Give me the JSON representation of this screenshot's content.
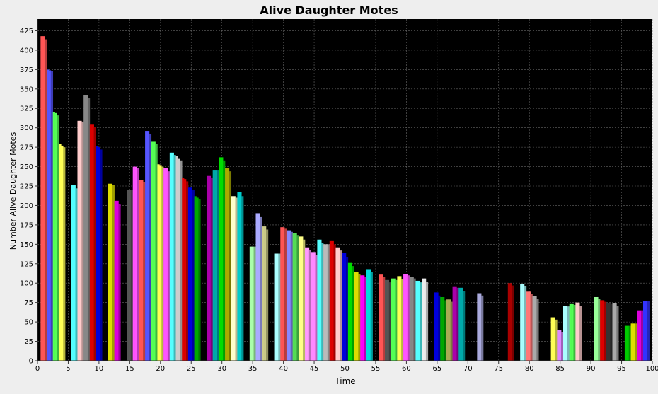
{
  "chart_data": {
    "type": "bar",
    "title": "Alive Daughter Motes",
    "xlabel": "Time",
    "ylabel": "Number Alive Daughter Motes",
    "xlim": [
      0,
      100
    ],
    "ylim": [
      0,
      440
    ],
    "x_ticks": [
      0,
      5,
      10,
      15,
      20,
      25,
      30,
      35,
      40,
      45,
      50,
      55,
      60,
      65,
      70,
      75,
      80,
      85,
      90,
      95,
      100
    ],
    "y_ticks": [
      0,
      25,
      50,
      75,
      100,
      125,
      150,
      175,
      200,
      225,
      250,
      275,
      300,
      325,
      350,
      375,
      400,
      425
    ],
    "grid": true,
    "legend": "none",
    "background": "#000000",
    "series": [
      {
        "x": 1,
        "values": [
          418,
          418,
          414
        ],
        "color": "#ff5555"
      },
      {
        "x": 2,
        "values": [
          375,
          374,
          373
        ],
        "color": "#5555ff"
      },
      {
        "x": 3,
        "values": [
          320,
          319,
          316
        ],
        "color": "#55ff55"
      },
      {
        "x": 4,
        "values": [
          279,
          277,
          275
        ],
        "color": "#ffff55"
      },
      {
        "x": 6,
        "values": [
          226,
          226,
          222
        ],
        "color": "#55ffff"
      },
      {
        "x": 7,
        "values": [
          309,
          309,
          308
        ],
        "color": "#ffcccc"
      },
      {
        "x": 8,
        "values": [
          342,
          342,
          338
        ],
        "color": "#888888"
      },
      {
        "x": 9,
        "values": [
          304,
          304,
          301
        ],
        "color": "#dd0000"
      },
      {
        "x": 10,
        "values": [
          276,
          275,
          272
        ],
        "color": "#0000dd"
      },
      {
        "x": 12,
        "values": [
          228,
          228,
          226
        ],
        "color": "#dddd00"
      },
      {
        "x": 13,
        "values": [
          206,
          206,
          202
        ],
        "color": "#dd00dd"
      },
      {
        "x": 15,
        "values": [
          220,
          220,
          220
        ],
        "color": "#555555"
      },
      {
        "x": 16,
        "values": [
          250,
          250,
          248
        ],
        "color": "#ff55ff"
      },
      {
        "x": 17,
        "values": [
          233,
          233,
          230
        ],
        "color": "#ff5555"
      },
      {
        "x": 18,
        "values": [
          296,
          296,
          292
        ],
        "color": "#5555ff"
      },
      {
        "x": 19,
        "values": [
          282,
          282,
          279
        ],
        "color": "#55ff55"
      },
      {
        "x": 20,
        "values": [
          253,
          252,
          250
        ],
        "color": "#ffff55"
      },
      {
        "x": 21,
        "values": [
          248,
          248,
          244
        ],
        "color": "#ff55ff"
      },
      {
        "x": 22,
        "values": [
          268,
          268,
          265
        ],
        "color": "#55ffff"
      },
      {
        "x": 23,
        "values": [
          264,
          260,
          258
        ],
        "color": "#cccccc"
      },
      {
        "x": 24,
        "values": [
          235,
          234,
          231
        ],
        "color": "#dd0000"
      },
      {
        "x": 25,
        "values": [
          223,
          223,
          220
        ],
        "color": "#0000dd"
      },
      {
        "x": 26,
        "values": [
          212,
          210,
          208
        ],
        "color": "#00aa00"
      },
      {
        "x": 28,
        "values": [
          238,
          238,
          236
        ],
        "color": "#aa00aa"
      },
      {
        "x": 29,
        "values": [
          245,
          245,
          245
        ],
        "color": "#00aaaa"
      },
      {
        "x": 30,
        "values": [
          262,
          262,
          258
        ],
        "color": "#00dd00"
      },
      {
        "x": 31,
        "values": [
          248,
          248,
          244
        ],
        "color": "#aaaa00"
      },
      {
        "x": 32,
        "values": [
          212,
          212,
          210
        ],
        "color": "#ffffcc"
      },
      {
        "x": 33,
        "values": [
          217,
          217,
          212
        ],
        "color": "#00cccc"
      },
      {
        "x": 35,
        "values": [
          147,
          147,
          147
        ],
        "color": "#aaffaa"
      },
      {
        "x": 36,
        "values": [
          190,
          190,
          185
        ],
        "color": "#aaaaff"
      },
      {
        "x": 37,
        "values": [
          173,
          173,
          169
        ],
        "color": "#cccc88"
      },
      {
        "x": 39,
        "values": [
          138,
          138,
          138
        ],
        "color": "#aaffff"
      },
      {
        "x": 40,
        "values": [
          172,
          172,
          170
        ],
        "color": "#ff5555"
      },
      {
        "x": 41,
        "values": [
          168,
          168,
          166
        ],
        "color": "#8888ff"
      },
      {
        "x": 42,
        "values": [
          164,
          164,
          162
        ],
        "color": "#55dd55"
      },
      {
        "x": 43,
        "values": [
          160,
          160,
          156
        ],
        "color": "#ffff88"
      },
      {
        "x": 44,
        "values": [
          146,
          146,
          143
        ],
        "color": "#ff99ff"
      },
      {
        "x": 45,
        "values": [
          140,
          140,
          136
        ],
        "color": "#ff88ff"
      },
      {
        "x": 46,
        "values": [
          156,
          156,
          152
        ],
        "color": "#55ffff"
      },
      {
        "x": 47,
        "values": [
          150,
          150,
          150
        ],
        "color": "#bbbbbb"
      },
      {
        "x": 48,
        "values": [
          155,
          155,
          150
        ],
        "color": "#dd0000"
      },
      {
        "x": 49,
        "values": [
          146,
          146,
          142
        ],
        "color": "#ffcccc"
      },
      {
        "x": 50,
        "values": [
          139,
          139,
          133
        ],
        "color": "#0000dd"
      },
      {
        "x": 51,
        "values": [
          126,
          126,
          122
        ],
        "color": "#00dd00"
      },
      {
        "x": 52,
        "values": [
          114,
          114,
          112
        ],
        "color": "#dddd00"
      },
      {
        "x": 53,
        "values": [
          110,
          110,
          108
        ],
        "color": "#ff00ff"
      },
      {
        "x": 54,
        "values": [
          118,
          118,
          114
        ],
        "color": "#00dddd"
      },
      {
        "x": 56,
        "values": [
          111,
          111,
          108
        ],
        "color": "#ff5555"
      },
      {
        "x": 57,
        "values": [
          104,
          104,
          101
        ],
        "color": "#555555"
      },
      {
        "x": 58,
        "values": [
          106,
          106,
          104
        ],
        "color": "#55ff55"
      },
      {
        "x": 59,
        "values": [
          109,
          109,
          105
        ],
        "color": "#ffff55"
      },
      {
        "x": 60,
        "values": [
          112,
          112,
          110
        ],
        "color": "#ff55ff"
      },
      {
        "x": 61,
        "values": [
          108,
          108,
          106
        ],
        "color": "#888888"
      },
      {
        "x": 62,
        "values": [
          103,
          103,
          101
        ],
        "color": "#55ffff"
      },
      {
        "x": 63,
        "values": [
          106,
          106,
          102
        ],
        "color": "#eeeeee"
      },
      {
        "x": 65,
        "values": [
          88,
          88,
          84
        ],
        "color": "#0000dd"
      },
      {
        "x": 66,
        "values": [
          82,
          82,
          78
        ],
        "color": "#00aa00"
      },
      {
        "x": 67,
        "values": [
          79,
          79,
          76
        ],
        "color": "#aaaa55"
      },
      {
        "x": 68,
        "values": [
          95,
          95,
          94
        ],
        "color": "#aa00aa"
      },
      {
        "x": 69,
        "values": [
          94,
          94,
          90
        ],
        "color": "#00aaaa"
      },
      {
        "x": 72,
        "values": [
          87,
          87,
          84
        ],
        "color": "#aaaadd"
      },
      {
        "x": 77,
        "values": [
          100,
          100,
          97
        ],
        "color": "#aa0000"
      },
      {
        "x": 79,
        "values": [
          99,
          99,
          96
        ],
        "color": "#aaffff"
      },
      {
        "x": 80,
        "values": [
          89,
          89,
          86
        ],
        "color": "#ff7777"
      },
      {
        "x": 81,
        "values": [
          83,
          83,
          80
        ],
        "color": "#aaaaaa"
      },
      {
        "x": 84,
        "values": [
          56,
          56,
          53
        ],
        "color": "#ffff55"
      },
      {
        "x": 85,
        "values": [
          40,
          40,
          37
        ],
        "color": "#dd88ff"
      },
      {
        "x": 86,
        "values": [
          71,
          71,
          70
        ],
        "color": "#aaffff"
      },
      {
        "x": 87,
        "values": [
          73,
          73,
          72
        ],
        "color": "#55ff55"
      },
      {
        "x": 88,
        "values": [
          75,
          75,
          71
        ],
        "color": "#ffcccc"
      },
      {
        "x": 91,
        "values": [
          82,
          82,
          80
        ],
        "color": "#99ff99"
      },
      {
        "x": 92,
        "values": [
          78,
          78,
          76
        ],
        "color": "#dd0000"
      },
      {
        "x": 93,
        "values": [
          74,
          74,
          73
        ],
        "color": "#333333"
      },
      {
        "x": 94,
        "values": [
          74,
          74,
          71
        ],
        "color": "#aaaaaa"
      },
      {
        "x": 96,
        "values": [
          45,
          45,
          45
        ],
        "color": "#00cc00"
      },
      {
        "x": 97,
        "values": [
          48,
          48,
          48
        ],
        "color": "#dddd00"
      },
      {
        "x": 98,
        "values": [
          65,
          65,
          65
        ],
        "color": "#dd00dd"
      },
      {
        "x": 99,
        "values": [
          77,
          77,
          77
        ],
        "color": "#3333ff"
      }
    ]
  }
}
